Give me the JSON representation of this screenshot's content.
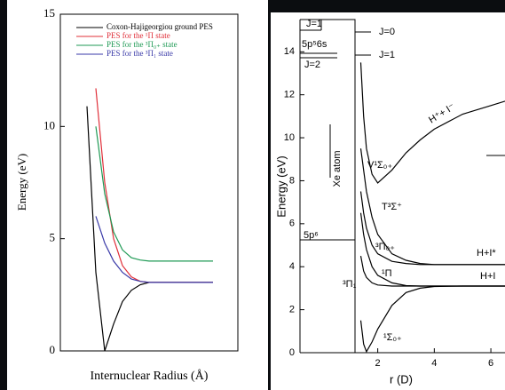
{
  "chart_data": [
    {
      "type": "line",
      "ylabel": "Energy (eV)",
      "xlabel": "Internuclear Radius (Å)",
      "ylim": [
        0,
        15
      ],
      "yticks": [
        0,
        5,
        10,
        15
      ],
      "xlim": [
        0,
        10
      ],
      "x": [
        1.5,
        2,
        2.5,
        3,
        3.5,
        4,
        4.5,
        5,
        6,
        7,
        8,
        8.6
      ],
      "series": [
        {
          "name": "Coxon-Hajigeorgiou ground PES",
          "color": "#000000",
          "values": [
            10.9,
            3.5,
            0,
            1.2,
            2.2,
            2.7,
            2.95,
            3.05,
            3.05,
            3.05,
            3.05,
            3.05
          ]
        },
        {
          "name": "PES for the ¹Π state",
          "color": "#e0303a",
          "values": [
            null,
            11.7,
            7.5,
            5.0,
            3.8,
            3.3,
            3.1,
            3.05,
            3.05,
            3.05,
            3.05,
            3.05
          ]
        },
        {
          "name": "PES for the ³Π₀₊ state",
          "color": "#1f9a55",
          "values": [
            null,
            10.0,
            7.0,
            5.3,
            4.5,
            4.15,
            4.05,
            4.0,
            4.0,
            4.0,
            4.0,
            4.0
          ]
        },
        {
          "name": "PES for the ³Π₁ state",
          "color": "#3a3aa8",
          "values": [
            null,
            6.0,
            4.8,
            4.0,
            3.5,
            3.2,
            3.1,
            3.05,
            3.05,
            3.05,
            3.05,
            3.05
          ]
        }
      ]
    },
    {
      "type": "line",
      "ylabel": "Energy (eV)",
      "xlabel": "r (D)",
      "ylim": [
        0,
        15.5
      ],
      "yticks": [
        0,
        2,
        4,
        6,
        8,
        10,
        12,
        14
      ],
      "xlim": [
        -0.75,
        6.5
      ],
      "xticks": [
        2,
        4,
        6
      ],
      "x": [
        1.4,
        1.5,
        1.6,
        1.8,
        2,
        2.5,
        3,
        3.5,
        4,
        5,
        6,
        6.5
      ],
      "series": [
        {
          "color": "#000000",
          "values": [
            1.5,
            0.4,
            0.05,
            0.5,
            1.1,
            2.2,
            2.8,
            3.0,
            3.08,
            3.1,
            3.1,
            3.1
          ]
        },
        {
          "color": "#000000",
          "values": [
            4.5,
            3.8,
            3.5,
            3.25,
            3.15,
            3.1,
            3.1,
            3.1,
            3.1,
            3.1,
            3.1,
            3.1
          ]
        },
        {
          "color": "#000000",
          "values": [
            6.5,
            5.5,
            4.8,
            4.0,
            3.6,
            3.25,
            3.12,
            3.1,
            3.1,
            3.1,
            3.1,
            3.1
          ]
        },
        {
          "color": "#000000",
          "values": [
            7.5,
            6.5,
            5.8,
            5.0,
            4.6,
            4.25,
            4.15,
            4.1,
            4.1,
            4.1,
            4.1,
            4.1
          ]
        },
        {
          "color": "#000000",
          "values": [
            9.5,
            8.5,
            7.5,
            6.3,
            5.5,
            4.6,
            4.3,
            4.15,
            4.1,
            4.1,
            4.1,
            4.1
          ]
        },
        {
          "color": "#000000",
          "values": [
            13.5,
            11.0,
            9.5,
            8.3,
            7.9,
            8.5,
            9.3,
            9.9,
            10.4,
            11.1,
            11.5,
            11.7
          ]
        }
      ],
      "annotations": [
        "J=1",
        "J=0",
        "5p⁵6s",
        "J=1",
        "J=2",
        "Xe atom",
        "5p⁶",
        "V¹Σ₀₊",
        "T³Σ⁺",
        "³Π₀₊",
        "¹Π",
        "³Π₁",
        "¹Σ₀₊",
        "H⁺+ I⁻",
        "H+I*",
        "H+I"
      ]
    }
  ]
}
